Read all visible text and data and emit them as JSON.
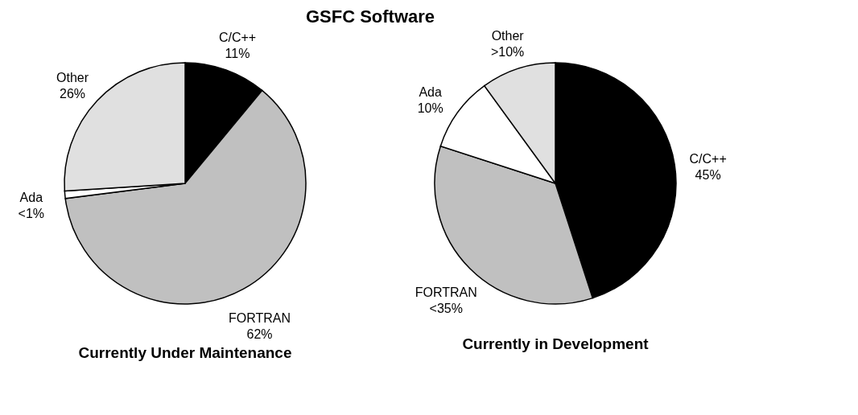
{
  "chart_data": [
    {
      "type": "pie",
      "title": "GSFC Software",
      "annotations": [
        "Currently Under Maintenance"
      ],
      "categories": [
        "C/C++",
        "FORTRAN",
        "Ada",
        "Other"
      ],
      "values": [
        11,
        62,
        1,
        26
      ],
      "colors": [
        "#000000",
        "#c0c0c0",
        "#ffffff",
        "#e0e0e0"
      ],
      "value_labels": [
        "11%",
        "62%",
        "<1%",
        "26%"
      ]
    },
    {
      "type": "pie",
      "annotations": [
        "Currently in Development"
      ],
      "categories": [
        "C/C++",
        "FORTRAN",
        "Ada",
        "Other"
      ],
      "values": [
        45,
        35,
        10,
        10
      ],
      "colors": [
        "#000000",
        "#c0c0c0",
        "#ffffff",
        "#e0e0e0"
      ],
      "value_labels": [
        "45%",
        "<35%",
        "10%",
        ">10%"
      ]
    }
  ]
}
